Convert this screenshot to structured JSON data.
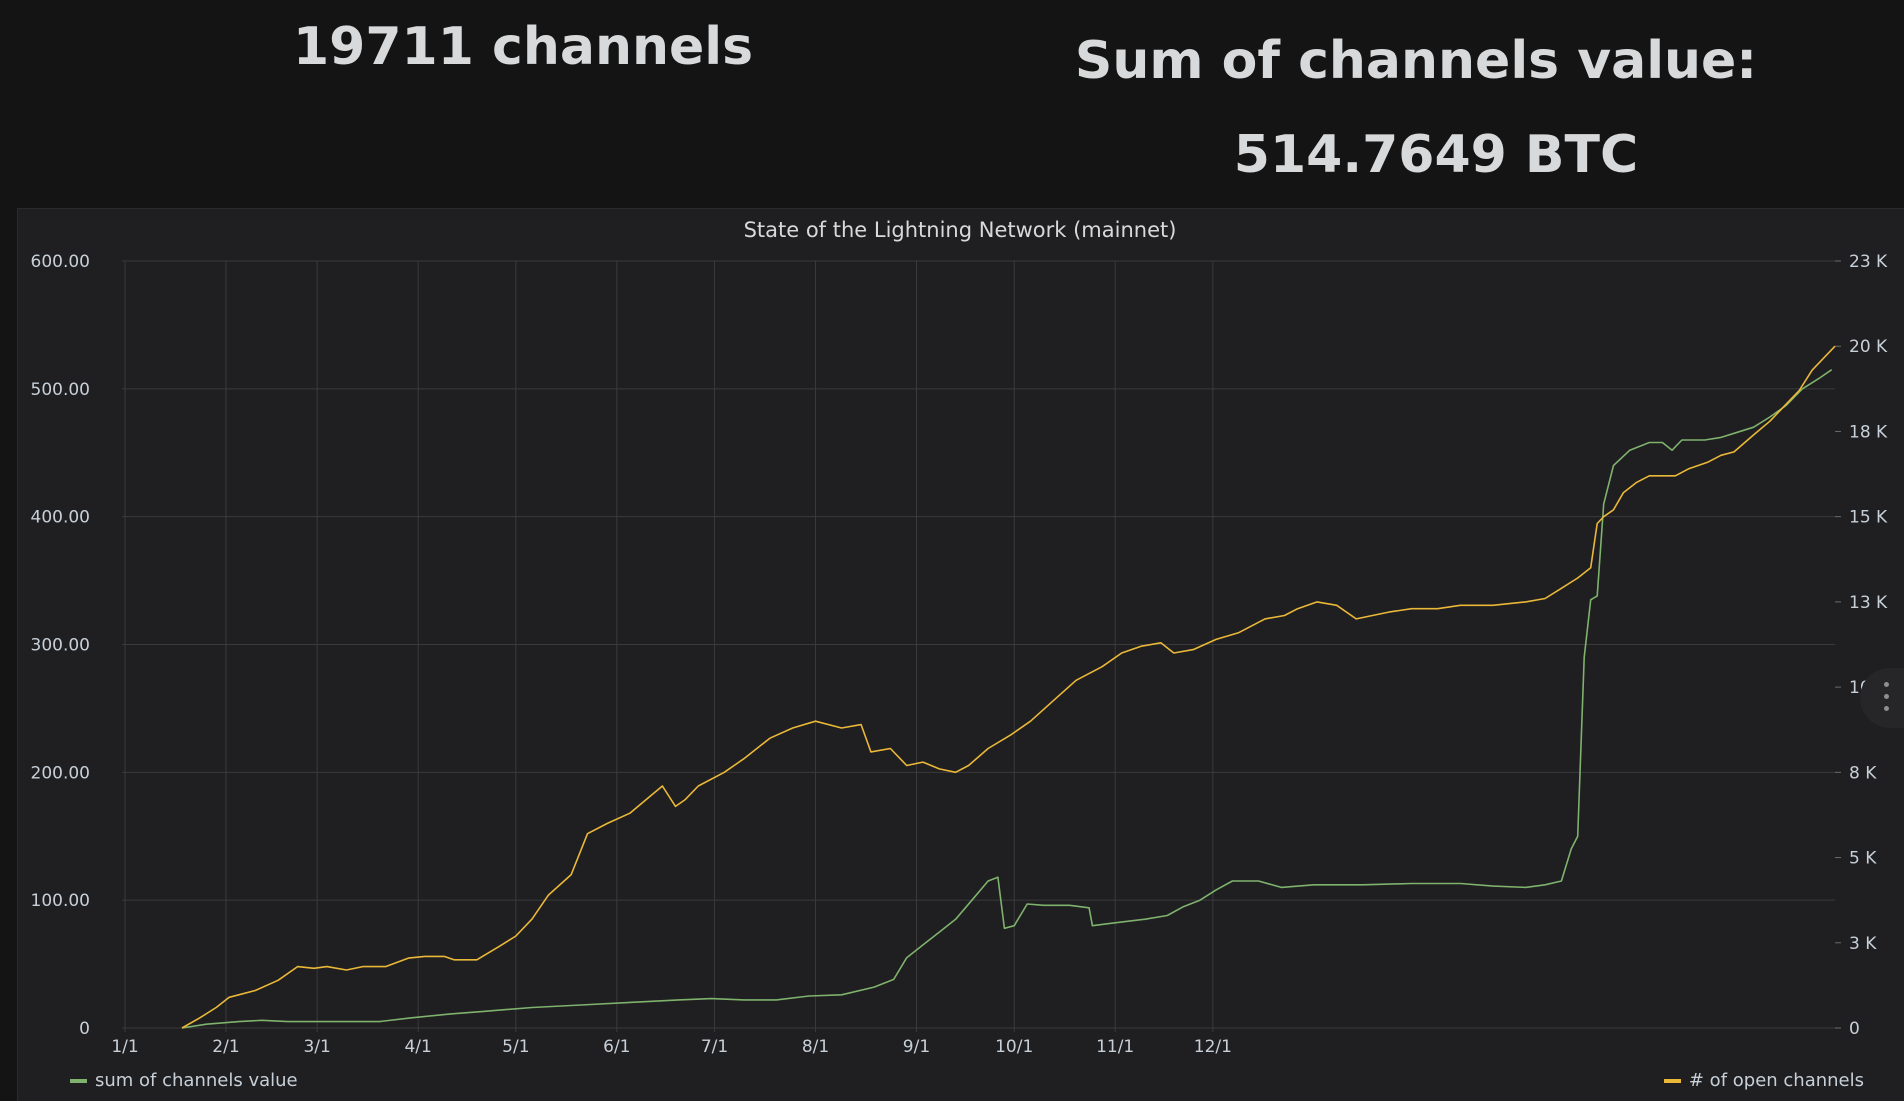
{
  "stats": {
    "channels": "19711 channels",
    "sum_label": "Sum of channels value:",
    "sum_value": "514.7649",
    "sum_unit": "BTC"
  },
  "colors": {
    "green": "#7eb26d",
    "yellow": "#eab839",
    "grid": "#3a3a3c"
  },
  "chart_data": {
    "type": "line",
    "title": "State of the Lightning Network (mainnet)",
    "x_ticks": [
      "1/1",
      "2/1",
      "3/1",
      "4/1",
      "5/1",
      "6/1",
      "7/1",
      "8/1",
      "9/1",
      "10/1",
      "11/1",
      "12/1"
    ],
    "y_left": {
      "ticks": [
        "600.00",
        "500.00",
        "400.00",
        "300.00",
        "200.00",
        "100.00",
        "0"
      ],
      "lim": [
        0,
        600
      ]
    },
    "y_right": {
      "ticks": [
        "23 K",
        "20 K",
        "18 K",
        "15 K",
        "13 K",
        "10 K",
        "8 K",
        "5 K",
        "3 K",
        "0"
      ],
      "lim": [
        0,
        22500
      ]
    },
    "grid": true,
    "legend": [
      "bottom-left",
      "bottom-right"
    ],
    "series": [
      {
        "name": "sum of channels value",
        "axis": "left",
        "color": "#7eb26d",
        "points": [
          [
            17.5,
            0
          ],
          [
            25,
            3
          ],
          [
            35,
            5
          ],
          [
            42,
            6
          ],
          [
            50,
            5
          ],
          [
            60,
            5
          ],
          [
            70,
            5
          ],
          [
            78,
            5
          ],
          [
            88,
            8
          ],
          [
            100,
            11
          ],
          [
            110,
            13
          ],
          [
            125,
            16
          ],
          [
            140,
            18
          ],
          [
            155,
            20
          ],
          [
            170,
            22
          ],
          [
            180,
            23
          ],
          [
            190,
            22
          ],
          [
            200,
            22
          ],
          [
            210,
            25
          ],
          [
            220,
            26
          ],
          [
            230,
            32
          ],
          [
            236,
            38
          ],
          [
            240,
            55
          ],
          [
            245,
            65
          ],
          [
            250,
            75
          ],
          [
            255,
            85
          ],
          [
            260,
            100
          ],
          [
            265,
            115
          ],
          [
            268,
            118
          ],
          [
            270,
            78
          ],
          [
            273,
            80
          ],
          [
            277,
            97
          ],
          [
            282,
            96
          ],
          [
            290,
            96
          ],
          [
            296,
            94
          ],
          [
            297,
            80
          ],
          [
            303,
            82
          ],
          [
            313,
            85
          ],
          [
            320,
            88
          ],
          [
            325,
            95
          ],
          [
            330,
            100
          ],
          [
            335,
            108
          ],
          [
            340,
            115
          ],
          [
            348,
            115
          ],
          [
            355,
            110
          ],
          [
            365,
            112
          ],
          [
            380,
            112
          ],
          [
            395,
            113
          ],
          [
            410,
            113
          ],
          [
            420,
            111
          ],
          [
            430,
            110
          ],
          [
            436,
            112
          ],
          [
            441,
            115
          ],
          [
            444,
            140
          ],
          [
            446,
            150
          ],
          [
            448,
            290
          ],
          [
            450,
            335
          ],
          [
            452,
            338
          ],
          [
            454,
            410
          ],
          [
            457,
            440
          ],
          [
            462,
            452
          ],
          [
            468,
            458
          ],
          [
            472,
            458
          ],
          [
            475,
            452
          ],
          [
            478,
            460
          ],
          [
            485,
            460
          ],
          [
            490,
            462
          ],
          [
            495,
            466
          ],
          [
            500,
            470
          ],
          [
            505,
            478
          ],
          [
            510,
            487
          ],
          [
            515,
            500
          ],
          [
            520,
            508
          ],
          [
            524,
            515
          ]
        ]
      },
      {
        "name": "# of open channels",
        "axis": "right",
        "color": "#eab839",
        "points": [
          [
            17.5,
            0
          ],
          [
            23,
            300
          ],
          [
            28,
            600
          ],
          [
            32,
            900
          ],
          [
            40,
            1100
          ],
          [
            47,
            1400
          ],
          [
            53,
            1800
          ],
          [
            58,
            1750
          ],
          [
            62,
            1800
          ],
          [
            68,
            1700
          ],
          [
            73,
            1800
          ],
          [
            80,
            1800
          ],
          [
            87,
            2050
          ],
          [
            92,
            2100
          ],
          [
            98,
            2100
          ],
          [
            101,
            2000
          ],
          [
            108,
            2000
          ],
          [
            115,
            2400
          ],
          [
            120,
            2700
          ],
          [
            125,
            3200
          ],
          [
            130,
            3900
          ],
          [
            137,
            4500
          ],
          [
            142,
            5700
          ],
          [
            148,
            6000
          ],
          [
            155,
            6300
          ],
          [
            160,
            6700
          ],
          [
            165,
            7100
          ],
          [
            169,
            6500
          ],
          [
            172,
            6700
          ],
          [
            176,
            7100
          ],
          [
            184,
            7500
          ],
          [
            190,
            7900
          ],
          [
            198,
            8500
          ],
          [
            205,
            8800
          ],
          [
            212,
            9000
          ],
          [
            220,
            8800
          ],
          [
            226,
            8900
          ],
          [
            229,
            8100
          ],
          [
            235,
            8200
          ],
          [
            240,
            7700
          ],
          [
            245,
            7800
          ],
          [
            250,
            7600
          ],
          [
            255,
            7500
          ],
          [
            259,
            7700
          ],
          [
            265,
            8200
          ],
          [
            272,
            8600
          ],
          [
            278,
            9000
          ],
          [
            285,
            9600
          ],
          [
            292,
            10200
          ],
          [
            300,
            10600
          ],
          [
            306,
            11000
          ],
          [
            312,
            11200
          ],
          [
            318,
            11300
          ],
          [
            322,
            11000
          ],
          [
            328,
            11100
          ],
          [
            335,
            11400
          ],
          [
            342,
            11600
          ],
          [
            350,
            12000
          ],
          [
            356,
            12100
          ],
          [
            360,
            12300
          ],
          [
            366,
            12500
          ],
          [
            372,
            12400
          ],
          [
            378,
            12000
          ],
          [
            383,
            12100
          ],
          [
            388,
            12200
          ],
          [
            395,
            12300
          ],
          [
            403,
            12300
          ],
          [
            410,
            12400
          ],
          [
            420,
            12400
          ],
          [
            430,
            12500
          ],
          [
            436,
            12600
          ],
          [
            441,
            12900
          ],
          [
            446,
            13200
          ],
          [
            450,
            13500
          ],
          [
            452,
            14800
          ],
          [
            454,
            15000
          ],
          [
            457,
            15200
          ],
          [
            460,
            15700
          ],
          [
            464,
            16000
          ],
          [
            468,
            16200
          ],
          [
            472,
            16200
          ],
          [
            476,
            16200
          ],
          [
            480,
            16400
          ],
          [
            486,
            16600
          ],
          [
            490,
            16800
          ],
          [
            494,
            16900
          ],
          [
            500,
            17400
          ],
          [
            505,
            17800
          ],
          [
            510,
            18300
          ],
          [
            514,
            18700
          ],
          [
            518,
            19300
          ],
          [
            522,
            19700
          ],
          [
            525,
            20000
          ]
        ]
      }
    ]
  }
}
